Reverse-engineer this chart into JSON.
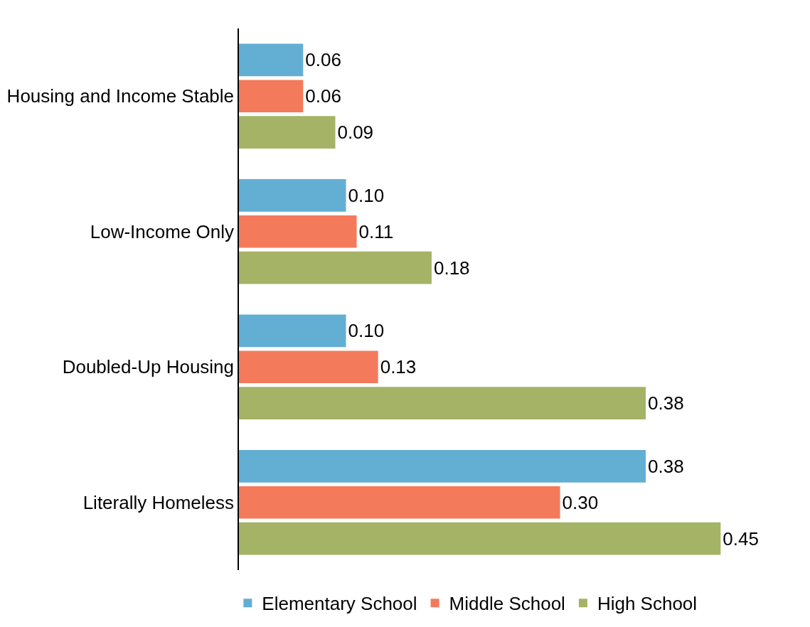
{
  "chart_data": {
    "type": "bar",
    "orientation": "horizontal",
    "legend": "bottom",
    "tick_labels": "y",
    "categories": [
      "Housing and Income Stable",
      "Low-Income Only",
      "Doubled-Up Housing",
      "Literally Homeless"
    ],
    "series": [
      {
        "name": "Elementary School",
        "color": "#63aed3",
        "values": [
          0.06,
          0.1,
          0.1,
          0.38
        ],
        "value_labels": [
          "0.06",
          "0.10",
          "0.10",
          "0.38"
        ]
      },
      {
        "name": "Middle School",
        "color": "#f47a5c",
        "values": [
          0.06,
          0.11,
          0.13,
          0.3
        ],
        "value_labels": [
          "0.06",
          "0.11",
          "0.13",
          "0.30"
        ]
      },
      {
        "name": "High School",
        "color": "#a5b366",
        "values": [
          0.09,
          0.18,
          0.38,
          0.45
        ],
        "value_labels": [
          "0.09",
          "0.18",
          "0.38",
          "0.45"
        ]
      }
    ]
  }
}
